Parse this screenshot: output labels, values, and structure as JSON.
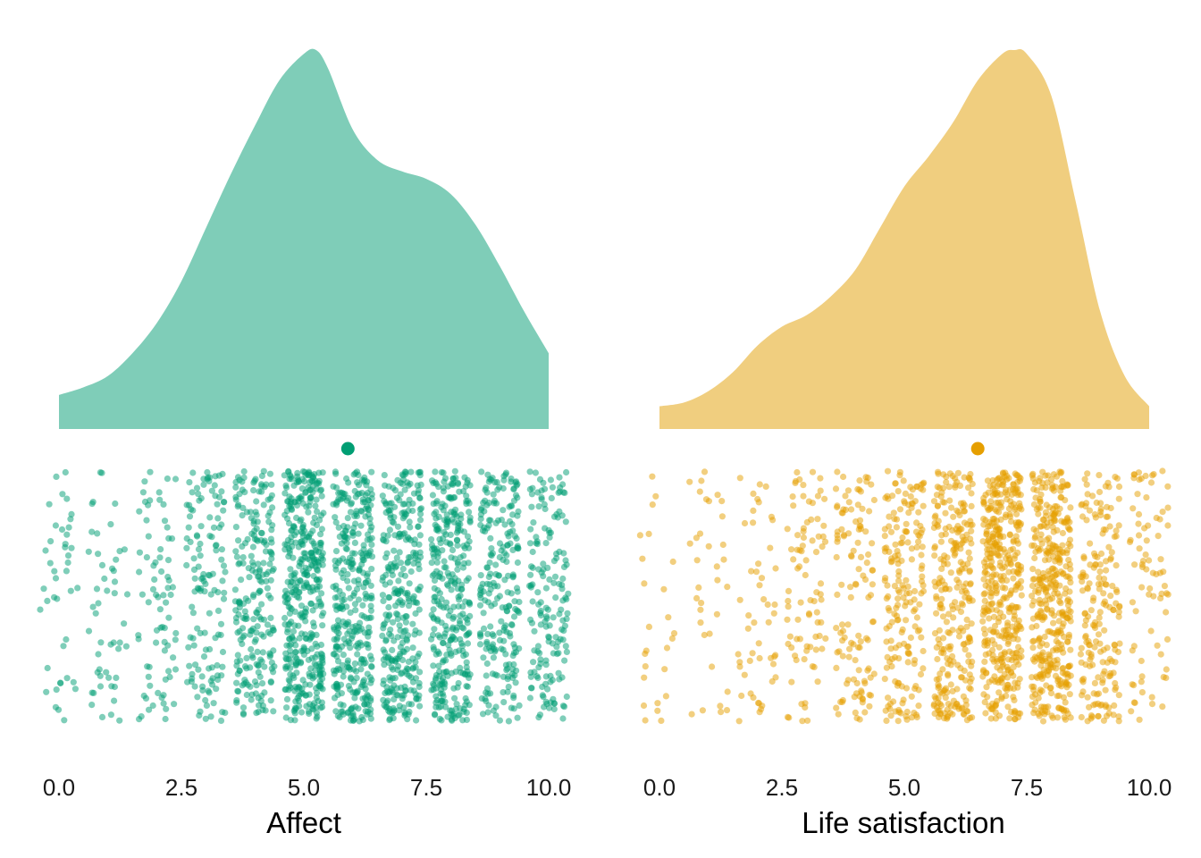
{
  "chart_data": [
    {
      "type": "raincloud",
      "xlabel": "Affect",
      "xlim": [
        0,
        10
      ],
      "x_ticks": [
        "0.0",
        "2.5",
        "5.0",
        "7.5",
        "10.0"
      ],
      "grid": false,
      "colors": {
        "point": "#009E73",
        "density": "#7FCDB8"
      },
      "density": {
        "x": [
          0.0,
          0.5,
          1.0,
          1.5,
          2.0,
          2.5,
          3.0,
          3.5,
          4.0,
          4.5,
          5.0,
          5.25,
          5.5,
          6.0,
          6.5,
          7.0,
          7.5,
          8.0,
          8.5,
          9.0,
          9.5,
          10.0
        ],
        "y": [
          0.09,
          0.11,
          0.14,
          0.2,
          0.28,
          0.39,
          0.53,
          0.67,
          0.8,
          0.92,
          0.99,
          1.0,
          0.95,
          0.79,
          0.71,
          0.68,
          0.66,
          0.62,
          0.54,
          0.43,
          0.31,
          0.2
        ]
      },
      "mean": 5.9,
      "points": {
        "note": "jittered raw responses on 0–10 scale",
        "values": [
          0,
          1,
          2,
          3,
          4,
          5,
          6,
          7,
          8,
          9,
          10
        ],
        "relative_counts": [
          0.1,
          0.12,
          0.18,
          0.32,
          0.55,
          1.0,
          0.85,
          0.75,
          0.8,
          0.55,
          0.4
        ]
      }
    },
    {
      "type": "raincloud",
      "xlabel": "Life satisfaction",
      "xlim": [
        0,
        10
      ],
      "x_ticks": [
        "0.0",
        "2.5",
        "5.0",
        "7.5",
        "10.0"
      ],
      "grid": false,
      "colors": {
        "point": "#E69F00",
        "density": "#F0CE7F"
      },
      "density": {
        "x": [
          0.0,
          0.5,
          1.0,
          1.5,
          2.0,
          2.5,
          3.0,
          3.5,
          4.0,
          4.5,
          5.0,
          5.5,
          6.0,
          6.5,
          7.0,
          7.25,
          7.5,
          8.0,
          8.5,
          9.0,
          9.5,
          10.0
        ],
        "y": [
          0.06,
          0.07,
          0.1,
          0.15,
          0.22,
          0.27,
          0.3,
          0.35,
          0.42,
          0.53,
          0.64,
          0.72,
          0.81,
          0.92,
          0.99,
          1.0,
          0.99,
          0.88,
          0.6,
          0.31,
          0.14,
          0.06
        ]
      },
      "mean": 6.5,
      "points": {
        "note": "jittered raw responses on 0–10 scale",
        "values": [
          0,
          1,
          2,
          3,
          4,
          5,
          6,
          7,
          8,
          9,
          10
        ],
        "relative_counts": [
          0.06,
          0.08,
          0.12,
          0.2,
          0.28,
          0.45,
          0.65,
          1.0,
          0.95,
          0.45,
          0.18
        ]
      }
    }
  ]
}
